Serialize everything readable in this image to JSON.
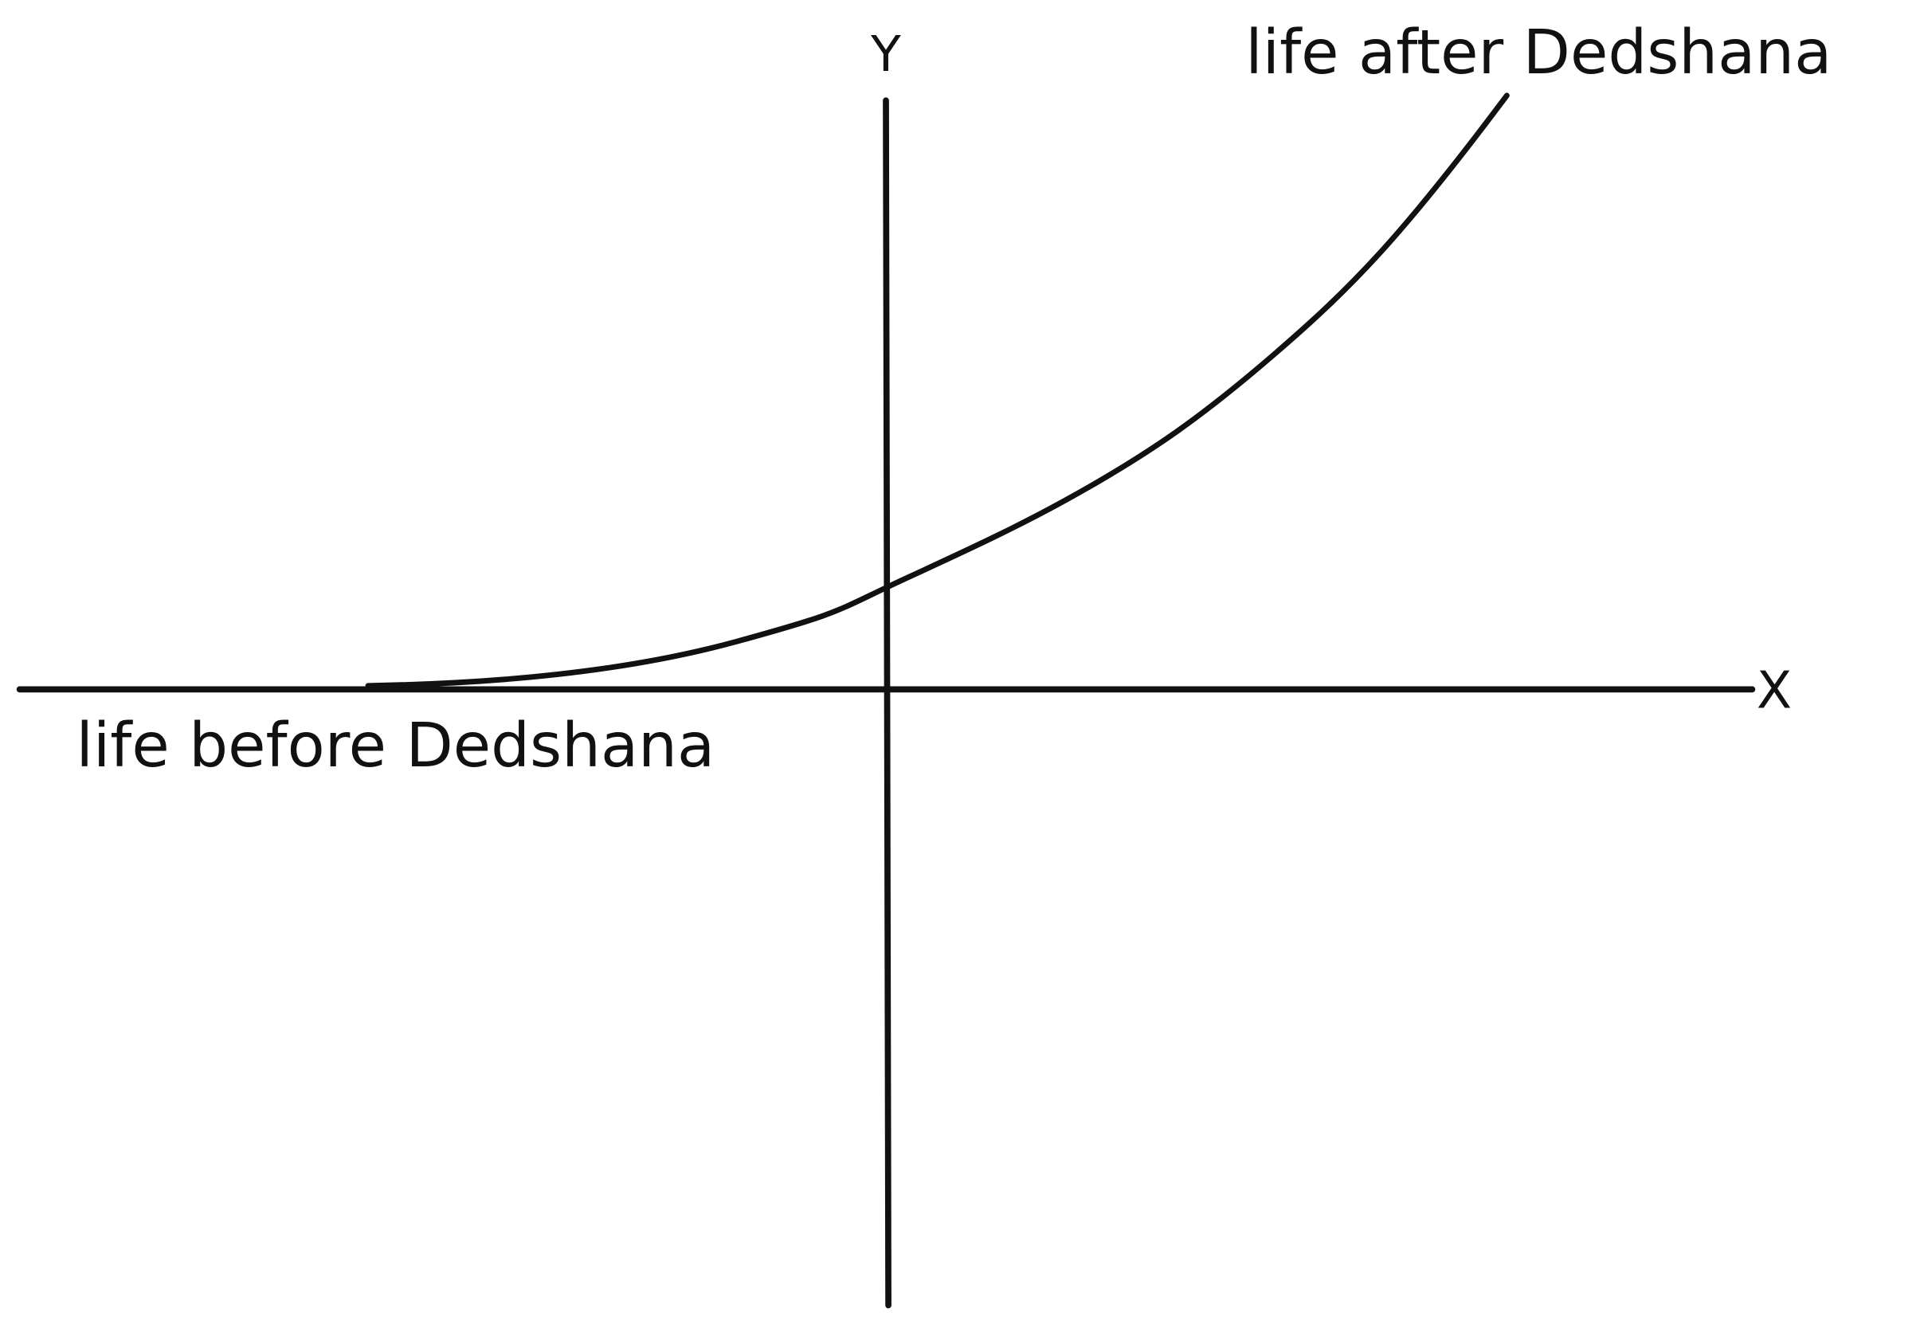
{
  "axes": {
    "y_label": "Y",
    "x_label": "X"
  },
  "annotations": {
    "top": "life after Dedshana",
    "bottom": "life before Dedshana"
  }
}
